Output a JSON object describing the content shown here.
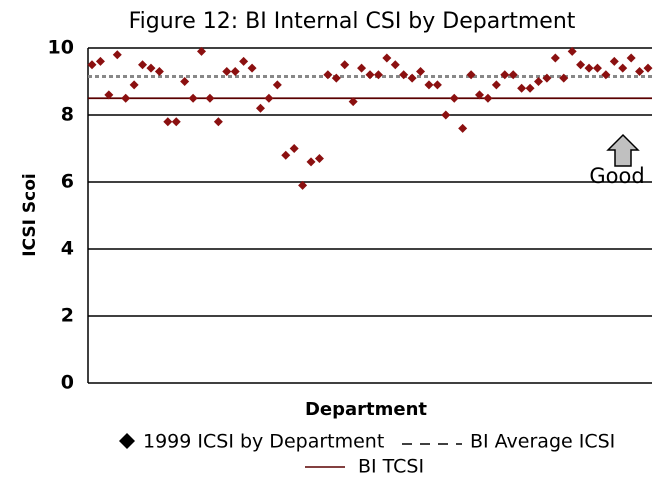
{
  "chart_data": {
    "type": "scatter",
    "title": "Figure 12: BI Internal CSI by Department",
    "x_label": "Department",
    "y_label": "ICSI Scoi",
    "annotation": "Good",
    "categories": [
      null,
      null,
      null,
      null,
      null,
      null,
      null,
      null,
      null,
      null,
      null,
      null,
      null,
      null,
      null,
      null,
      null,
      null,
      null,
      null,
      null,
      null,
      null,
      null,
      null,
      null,
      null,
      null,
      null,
      null,
      null,
      null,
      null,
      null,
      null,
      null,
      null,
      null,
      null,
      null,
      null,
      null,
      null,
      null,
      null,
      null,
      null,
      null,
      null,
      null,
      null,
      null,
      null,
      null,
      null,
      null,
      null,
      null,
      null,
      null,
      null,
      null,
      null,
      null,
      null,
      null,
      null
    ],
    "series": [
      {
        "name": "1999 ICSI by Department",
        "color": "#8b1010",
        "values": [
          9.5,
          9.6,
          8.6,
          9.8,
          8.5,
          8.9,
          9.5,
          9.4,
          9.3,
          7.8,
          7.8,
          9.0,
          8.5,
          9.9,
          8.5,
          7.8,
          9.3,
          9.3,
          9.6,
          9.4,
          8.2,
          8.5,
          8.9,
          6.8,
          7.0,
          5.9,
          6.6,
          6.7,
          9.2,
          9.1,
          9.5,
          8.4,
          9.4,
          9.2,
          9.2,
          9.7,
          9.5,
          9.2,
          9.1,
          9.3,
          8.9,
          8.9,
          8.0,
          8.5,
          7.6,
          9.2,
          8.6,
          8.5,
          8.9,
          9.2,
          9.2,
          8.8,
          8.8,
          9.0,
          9.1,
          9.7,
          9.1,
          9.9,
          9.5,
          9.4,
          9.4,
          9.2,
          9.6,
          9.4,
          9.7,
          9.3,
          9.4
        ]
      }
    ],
    "reference_lines": [
      {
        "name": "BI Average ICSI",
        "value": 9.15,
        "color": "#888888",
        "dashed": true
      },
      {
        "name": "BI TCSI",
        "value": 8.5,
        "color": "#5a0000",
        "dashed": false
      }
    ],
    "ylim": [
      0,
      10
    ],
    "yticks": [
      0,
      2,
      4,
      6,
      8,
      10
    ],
    "grid": true
  }
}
